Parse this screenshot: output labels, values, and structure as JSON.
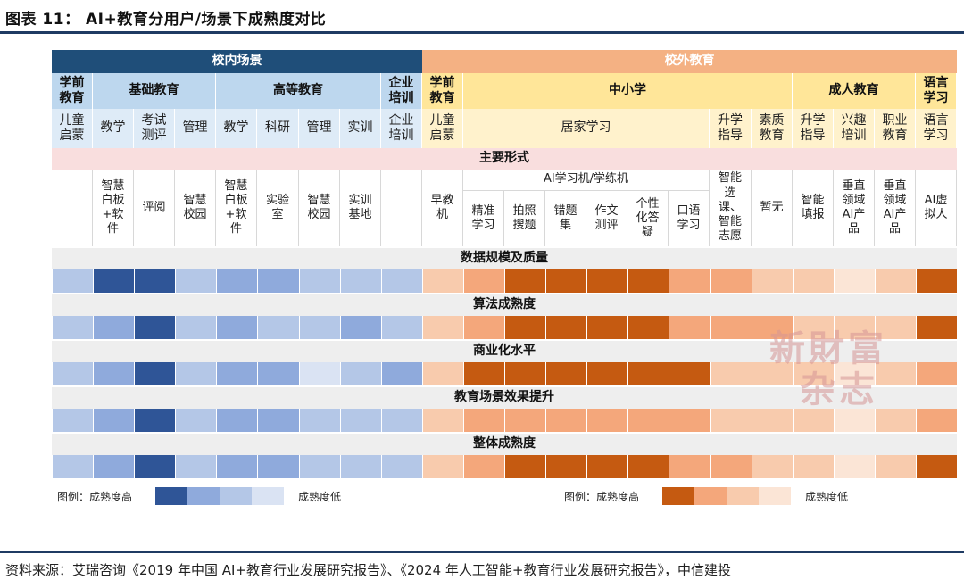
{
  "title": "图表 11：  AI+教育分用户/场景下成熟度对比",
  "colors": {
    "in_header": "#1f4e79",
    "in_sub": "#bdd7ee",
    "in_sub_light": "#deebf7",
    "out_header": "#f4b183",
    "out_sub": "#ffe699",
    "out_sub_light": "#fff2cc",
    "pink_band": "#f9dede",
    "grey_band": "#eeeeee",
    "blue_scale": [
      "#2f5597",
      "#8faadc",
      "#b4c7e7",
      "#dae3f3"
    ],
    "orange_scale": [
      "#c55a11",
      "#f4a77b",
      "#f8cbad",
      "#fbe5d6"
    ]
  },
  "header": {
    "campus_in": "校内场景",
    "campus_out": "校外教育"
  },
  "groups": [
    "学前教育",
    "基础教育",
    "高等教育",
    "企业培训",
    "学前教育",
    "中小学",
    "成人教育",
    "语言学习"
  ],
  "scenes": [
    "儿童启蒙",
    "教学",
    "考试测评",
    "管理",
    "教学",
    "科研",
    "管理",
    "实训",
    "企业培训",
    "儿童启蒙",
    "居家学习",
    "升学指导",
    "素质教育",
    "升学指导",
    "兴趣培训",
    "职业教育",
    "语言学习"
  ],
  "forms_title": "主要形式",
  "ai_machine": "AI学习机/学练机",
  "forms": [
    "",
    "智慧白板+软件",
    "评阅",
    "智慧校园",
    "智慧白板+软件",
    "实验室",
    "智慧校园",
    "实训基地",
    "",
    "早教机",
    "精准学习",
    "拍照搜题",
    "错题集",
    "作文测评",
    "个性化答疑",
    "口语学习",
    "智能选课、智能志愿",
    "暂无",
    "智能填报",
    "垂直领域AI产品",
    "垂直领域AI产品",
    "AI虚拟人"
  ],
  "metrics": [
    {
      "name": "数据规模及质量",
      "levels": [
        3,
        1,
        1,
        3,
        2,
        2,
        3,
        3,
        3,
        3,
        2,
        1,
        1,
        1,
        1,
        2,
        2,
        3,
        3,
        4,
        3,
        1
      ]
    },
    {
      "name": "算法成熟度",
      "levels": [
        3,
        2,
        1,
        3,
        2,
        3,
        3,
        2,
        3,
        3,
        2,
        1,
        1,
        1,
        1,
        2,
        2,
        2,
        3,
        3,
        3,
        1
      ]
    },
    {
      "name": "商业化水平",
      "levels": [
        3,
        2,
        1,
        3,
        2,
        2,
        4,
        3,
        2,
        3,
        1,
        1,
        1,
        1,
        1,
        1,
        3,
        3,
        3,
        4,
        3,
        2
      ]
    },
    {
      "name": "教育场景效果提升",
      "levels": [
        3,
        2,
        1,
        3,
        2,
        2,
        3,
        3,
        3,
        3,
        2,
        2,
        2,
        2,
        2,
        2,
        3,
        3,
        3,
        4,
        3,
        2
      ]
    },
    {
      "name": "整体成熟度",
      "levels": [
        3,
        2,
        1,
        3,
        2,
        2,
        3,
        3,
        3,
        3,
        2,
        1,
        1,
        1,
        1,
        2,
        2,
        3,
        3,
        4,
        3,
        1
      ]
    }
  ],
  "legend_left": {
    "label_high": "图例：成熟度高",
    "label_low": "成熟度低"
  },
  "legend_right": {
    "label_high": "图例：成熟度高",
    "label_low": "成熟度低"
  },
  "watermark": [
    "新財富",
    "杂志"
  ],
  "source": "资料来源：艾瑞咨询《2019 年中国 AI+教育行业发展研究报告》、《2024 年人工智能+教育行业发展研究报告》，中信建投"
}
